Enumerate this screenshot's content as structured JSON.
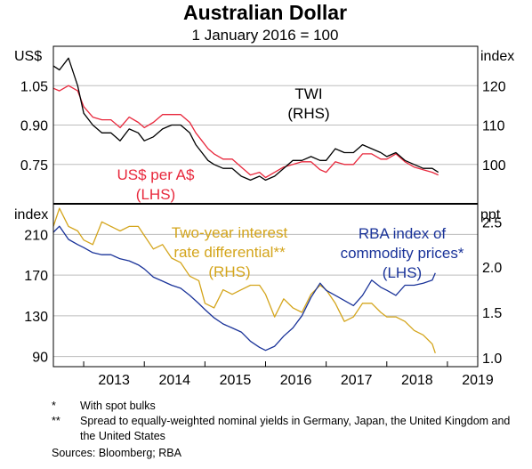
{
  "chart_data": [
    {
      "type": "line",
      "panel": "top",
      "title": "Australian Dollar",
      "subtitle": "1 January 2016 = 100",
      "left_axis": {
        "unit": "US$",
        "ticks": [
          "0.75",
          "0.90",
          "1.05"
        ],
        "tick_values": [
          0.75,
          0.9,
          1.05
        ],
        "ylim": [
          0.6,
          1.2
        ]
      },
      "right_axis": {
        "unit": "index",
        "ticks": [
          "100",
          "110",
          "120"
        ],
        "tick_values": [
          100,
          110,
          120
        ],
        "ylim": [
          90,
          130
        ]
      },
      "series": [
        {
          "name": "US$ per A$",
          "annotation": [
            "US$ per A$",
            "(LHS)"
          ],
          "axis": "left",
          "color": "#e8283c",
          "x": [
            2012.5,
            2012.6,
            2012.75,
            2012.9,
            2013.0,
            2013.15,
            2013.3,
            2013.45,
            2013.6,
            2013.75,
            2013.9,
            2014.0,
            2014.15,
            2014.3,
            2014.45,
            2014.6,
            2014.75,
            2014.85,
            2014.95,
            2015.05,
            2015.15,
            2015.3,
            2015.45,
            2015.6,
            2015.75,
            2015.9,
            2016.0,
            2016.15,
            2016.3,
            2016.45,
            2016.6,
            2016.75,
            2016.9,
            2017.0,
            2017.15,
            2017.3,
            2017.45,
            2017.6,
            2017.75,
            2017.9,
            2018.0,
            2018.15,
            2018.3,
            2018.45,
            2018.6,
            2018.75,
            2018.85
          ],
          "values": [
            1.04,
            1.03,
            1.05,
            1.03,
            0.97,
            0.93,
            0.92,
            0.92,
            0.89,
            0.93,
            0.91,
            0.89,
            0.91,
            0.94,
            0.94,
            0.94,
            0.91,
            0.87,
            0.84,
            0.81,
            0.79,
            0.77,
            0.77,
            0.74,
            0.71,
            0.72,
            0.7,
            0.72,
            0.74,
            0.75,
            0.76,
            0.76,
            0.73,
            0.72,
            0.76,
            0.75,
            0.75,
            0.79,
            0.79,
            0.77,
            0.77,
            0.79,
            0.76,
            0.74,
            0.73,
            0.72,
            0.71
          ]
        },
        {
          "name": "TWI",
          "annotation": [
            "TWI",
            "(RHS)"
          ],
          "axis": "right",
          "color": "#000000",
          "x": [
            2012.5,
            2012.6,
            2012.75,
            2012.9,
            2013.0,
            2013.15,
            2013.3,
            2013.45,
            2013.6,
            2013.75,
            2013.9,
            2014.0,
            2014.15,
            2014.3,
            2014.45,
            2014.6,
            2014.75,
            2014.85,
            2014.95,
            2015.05,
            2015.15,
            2015.3,
            2015.45,
            2015.6,
            2015.75,
            2015.9,
            2016.0,
            2016.15,
            2016.3,
            2016.45,
            2016.6,
            2016.75,
            2016.9,
            2017.0,
            2017.15,
            2017.3,
            2017.45,
            2017.6,
            2017.75,
            2017.9,
            2018.0,
            2018.15,
            2018.3,
            2018.45,
            2018.6,
            2018.75,
            2018.85
          ],
          "values": [
            125,
            124,
            127,
            120,
            113,
            110,
            108,
            108,
            106,
            109,
            108,
            106,
            107,
            109,
            110,
            110,
            108,
            105,
            103,
            101,
            100,
            99,
            99,
            97,
            96,
            97,
            96,
            97,
            99,
            101,
            101,
            102,
            101,
            101,
            104,
            103,
            103,
            105,
            104,
            103,
            102,
            103,
            101,
            100,
            99,
            99,
            98
          ]
        }
      ]
    },
    {
      "type": "line",
      "panel": "bottom",
      "left_axis": {
        "unit": "index",
        "ticks": [
          "90",
          "130",
          "170",
          "210"
        ],
        "tick_values": [
          90,
          130,
          170,
          210
        ],
        "ylim": [
          80,
          240
        ]
      },
      "right_axis": {
        "unit": "ppt",
        "ticks": [
          "1.0",
          "1.5",
          "2.0",
          "2.5"
        ],
        "tick_values": [
          1.0,
          1.5,
          2.0,
          2.5
        ],
        "ylim": [
          0.9,
          2.7
        ]
      },
      "x_ticks": [
        "2013",
        "2014",
        "2015",
        "2016",
        "2017",
        "2018",
        "2019"
      ],
      "x_tick_values": [
        2013,
        2014,
        2015,
        2016,
        2017,
        2018,
        2019
      ],
      "xlim": [
        2012.5,
        2019.5
      ],
      "series": [
        {
          "name": "Two-year interest rate differential**",
          "annotation": [
            "Two-year interest",
            "rate differential**",
            "(RHS)"
          ],
          "axis": "right",
          "color": "#d4a51c",
          "x": [
            2012.5,
            2012.6,
            2012.75,
            2012.9,
            2013.0,
            2013.15,
            2013.3,
            2013.45,
            2013.6,
            2013.75,
            2013.9,
            2014.0,
            2014.15,
            2014.3,
            2014.45,
            2014.6,
            2014.75,
            2014.9,
            2015.0,
            2015.15,
            2015.3,
            2015.45,
            2015.6,
            2015.75,
            2015.9,
            2016.0,
            2016.15,
            2016.3,
            2016.45,
            2016.6,
            2016.75,
            2016.9,
            2017.0,
            2017.15,
            2017.3,
            2017.45,
            2017.6,
            2017.75,
            2017.9,
            2018.0,
            2018.15,
            2018.3,
            2018.45,
            2018.6,
            2018.75,
            2018.8
          ],
          "values": [
            2.45,
            2.65,
            2.45,
            2.4,
            2.3,
            2.25,
            2.5,
            2.45,
            2.4,
            2.45,
            2.45,
            2.35,
            2.2,
            2.25,
            2.1,
            2.05,
            1.9,
            1.85,
            1.6,
            1.55,
            1.75,
            1.7,
            1.75,
            1.8,
            1.8,
            1.7,
            1.45,
            1.65,
            1.55,
            1.5,
            1.7,
            1.8,
            1.75,
            1.6,
            1.4,
            1.45,
            1.6,
            1.6,
            1.5,
            1.45,
            1.45,
            1.4,
            1.3,
            1.25,
            1.15,
            1.05
          ]
        },
        {
          "name": "RBA index of commodity prices*",
          "annotation": [
            "RBA index of",
            "commodity prices*",
            "(LHS)"
          ],
          "axis": "left",
          "color": "#1a3399",
          "x": [
            2012.5,
            2012.6,
            2012.75,
            2012.9,
            2013.0,
            2013.15,
            2013.3,
            2013.45,
            2013.6,
            2013.75,
            2013.9,
            2014.0,
            2014.15,
            2014.3,
            2014.45,
            2014.6,
            2014.75,
            2014.9,
            2015.0,
            2015.15,
            2015.3,
            2015.45,
            2015.6,
            2015.75,
            2015.9,
            2016.0,
            2016.15,
            2016.3,
            2016.45,
            2016.6,
            2016.75,
            2016.9,
            2017.0,
            2017.15,
            2017.3,
            2017.45,
            2017.6,
            2017.75,
            2017.9,
            2018.0,
            2018.15,
            2018.3,
            2018.45,
            2018.6,
            2018.75,
            2018.8
          ],
          "values": [
            212,
            218,
            205,
            200,
            197,
            192,
            190,
            190,
            186,
            184,
            180,
            176,
            168,
            164,
            160,
            157,
            150,
            142,
            136,
            128,
            122,
            118,
            114,
            105,
            99,
            96,
            100,
            110,
            118,
            130,
            148,
            162,
            155,
            150,
            145,
            140,
            150,
            165,
            158,
            155,
            150,
            160,
            160,
            162,
            165,
            172
          ]
        }
      ]
    }
  ],
  "notes": [
    {
      "mark": "*",
      "text": "With spot bulks"
    },
    {
      "mark": "**",
      "text": "Spread to equally-weighted nominal yields in Germany, Japan, the United Kingdom and the United States"
    }
  ],
  "sources": {
    "label": "Sources:",
    "text": "Bloomberg; RBA"
  }
}
